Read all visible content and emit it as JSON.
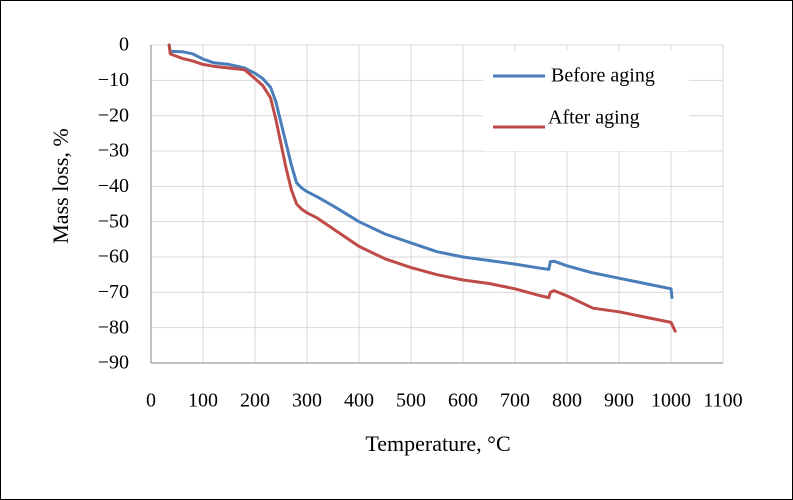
{
  "chart_data": {
    "type": "line",
    "title": "",
    "xlabel": "Temperature, °C",
    "ylabel": "Mass loss, %",
    "xlim": [
      0,
      1100
    ],
    "ylim": [
      -90,
      0
    ],
    "xticks": [
      0,
      100,
      200,
      300,
      400,
      500,
      600,
      700,
      800,
      900,
      1000,
      1100
    ],
    "yticks": [
      0,
      -10,
      -20,
      -30,
      -40,
      -50,
      -60,
      -70,
      -80,
      -90
    ],
    "xtick_labels": [
      "0",
      "100",
      "200",
      "300",
      "400",
      "500",
      "600",
      "700",
      "800",
      "900",
      "1000",
      "1100"
    ],
    "ytick_labels": [
      "0",
      "−10",
      "−20",
      "−30",
      "−40",
      "−50",
      "−60",
      "−70",
      "−80",
      "−90"
    ],
    "grid": true,
    "legend_position": "top-right",
    "series": [
      {
        "name": "Before aging",
        "color": "#4a7ebb",
        "x": [
          35,
          37,
          40,
          60,
          80,
          100,
          120,
          150,
          180,
          200,
          215,
          230,
          240,
          250,
          260,
          270,
          280,
          290,
          300,
          320,
          350,
          400,
          450,
          500,
          550,
          600,
          650,
          700,
          750,
          765,
          768,
          775,
          800,
          850,
          900,
          950,
          1000,
          1002
        ],
        "y": [
          0,
          -2,
          -1.8,
          -1.9,
          -2.5,
          -4,
          -5,
          -5.5,
          -6.5,
          -8,
          -9.5,
          -12,
          -16,
          -22,
          -28,
          -34,
          -39,
          -40.5,
          -41.5,
          -43,
          -45.5,
          -50,
          -53.5,
          -56,
          -58.5,
          -60,
          -61,
          -62,
          -63.2,
          -63.5,
          -61.3,
          -61.2,
          -62.5,
          -64.5,
          -66,
          -67.5,
          -69,
          -71.5
        ]
      },
      {
        "name": "After aging",
        "color": "#be4b48",
        "x": [
          35,
          37,
          40,
          60,
          80,
          100,
          120,
          150,
          180,
          200,
          215,
          230,
          240,
          250,
          260,
          270,
          280,
          290,
          300,
          320,
          350,
          400,
          450,
          500,
          550,
          600,
          650,
          700,
          750,
          765,
          768,
          775,
          800,
          850,
          900,
          950,
          1000,
          1008
        ],
        "y": [
          0,
          -2.5,
          -2.7,
          -3.8,
          -4.5,
          -5.5,
          -6,
          -6.5,
          -7,
          -9.5,
          -11.5,
          -15,
          -21,
          -28,
          -35,
          -41,
          -45,
          -46.5,
          -47.5,
          -49,
          -52,
          -57,
          -60.5,
          -63,
          -65,
          -66.5,
          -67.5,
          -69,
          -71,
          -71.5,
          -70,
          -69.5,
          -71,
          -74.5,
          -75.5,
          -77,
          -78.5,
          -81
        ]
      }
    ]
  }
}
